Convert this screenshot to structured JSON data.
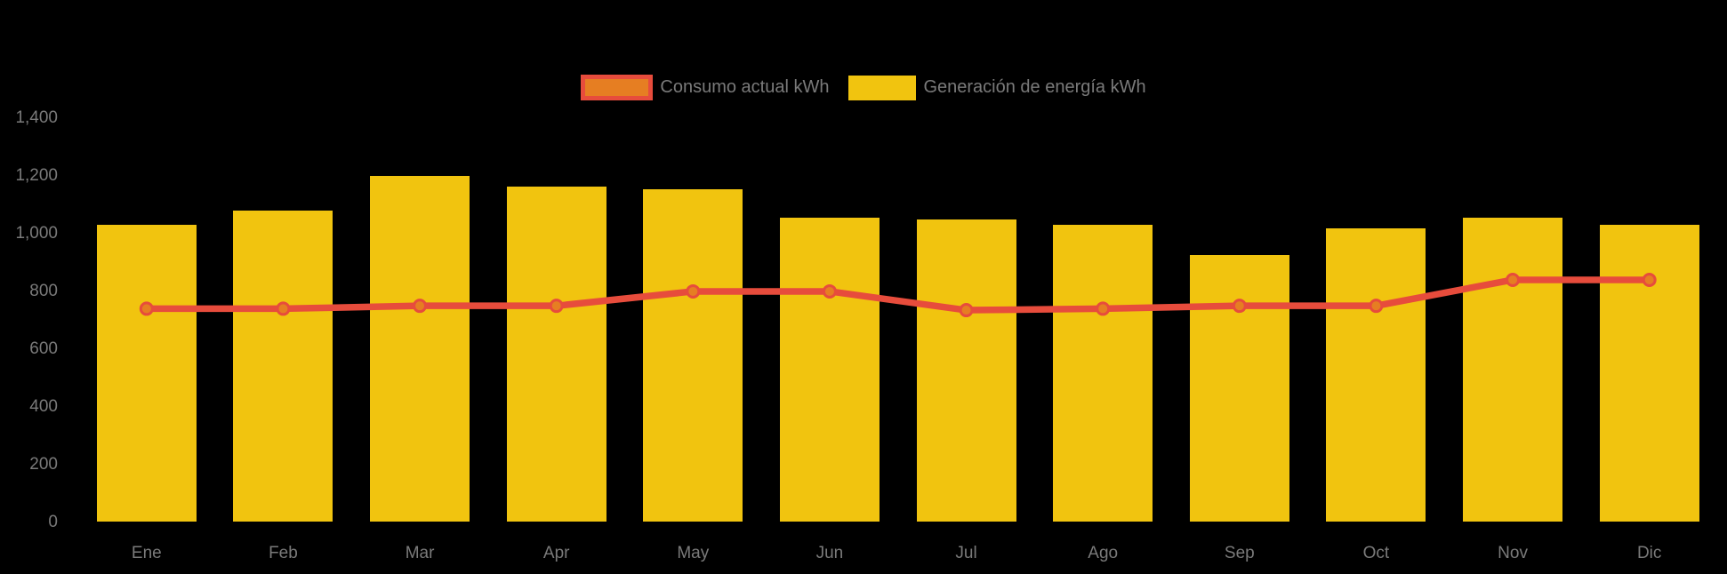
{
  "page": {
    "background": "#000000",
    "text_color": "#7a7a7a"
  },
  "legend": {
    "position": "top-center",
    "items": [
      {
        "label": "Consumo actual kWh",
        "series": "line",
        "fill": "#E67E22",
        "border": "#E74C3C"
      },
      {
        "label": "Generación de energía kWh",
        "series": "bar",
        "fill": "#F1C40F",
        "border": "#F1C40F"
      }
    ]
  },
  "chart_data": {
    "type": "bar",
    "title": "",
    "xlabel": "",
    "ylabel": "",
    "categories": [
      "Ene",
      "Feb",
      "Mar",
      "Apr",
      "May",
      "Jun",
      "Jul",
      "Ago",
      "Sep",
      "Oct",
      "Nov",
      "Dic"
    ],
    "series": [
      {
        "name": "Consumo actual kWh",
        "type": "line",
        "color": "#E74C3C",
        "point_fill": "#E67E22",
        "point_border": "#E74C3C",
        "values": [
          740,
          740,
          750,
          750,
          800,
          800,
          735,
          740,
          750,
          750,
          840,
          840
        ]
      },
      {
        "name": "Generación de energía kWh",
        "type": "bar",
        "color": "#F1C40F",
        "values": [
          1030,
          1080,
          1200,
          1165,
          1155,
          1055,
          1050,
          1030,
          925,
          1020,
          1055,
          1030
        ]
      }
    ],
    "ylim": [
      0,
      1400
    ],
    "ytick_step": 200,
    "ytick_labels": [
      "0",
      "200",
      "400",
      "600",
      "800",
      "1,000",
      "1,200",
      "1,400"
    ],
    "grid": false,
    "legend_position": "top"
  }
}
